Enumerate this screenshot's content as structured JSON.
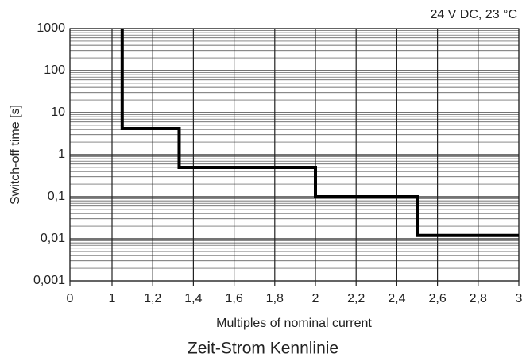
{
  "chart_data": {
    "type": "line",
    "title": "Zeit-Strom Kennlinie",
    "annotation": "24 V DC, 23 °C",
    "x_label": "Multiples of nominal current",
    "y_label": "Switch-off time [s]",
    "y_scale": "log",
    "grid": true,
    "x": [
      1.05,
      1.05,
      1.33,
      1.33,
      2,
      2,
      2.5,
      2.5,
      3
    ],
    "series": [
      {
        "color": "#000000",
        "values": [
          1000,
          4.2,
          4.2,
          0.5,
          0.5,
          0.1,
          0.1,
          0.012,
          0.012
        ]
      }
    ],
    "xlim": [
      0,
      3
    ],
    "xticks": [
      0,
      1,
      {
        "value": 1.2,
        "label": "1,2"
      },
      {
        "value": 1.4,
        "label": "1,4"
      },
      {
        "value": 1.6,
        "label": "1,6"
      },
      {
        "value": 1.8,
        "label": "1,8"
      },
      2,
      {
        "value": 2.2,
        "label": "2,2"
      },
      {
        "value": 2.4,
        "label": "2,4"
      },
      {
        "value": 2.6,
        "label": "2,6"
      },
      {
        "value": 2.8,
        "label": "2,8"
      },
      3
    ],
    "ylim": [
      0.001,
      1000
    ],
    "yticks": [
      1000,
      100,
      10,
      1,
      {
        "value": 0.1,
        "label": "0,1"
      },
      {
        "value": 0.01,
        "label": "0,01"
      },
      {
        "value": 0.001,
        "label": "0,001"
      }
    ]
  }
}
